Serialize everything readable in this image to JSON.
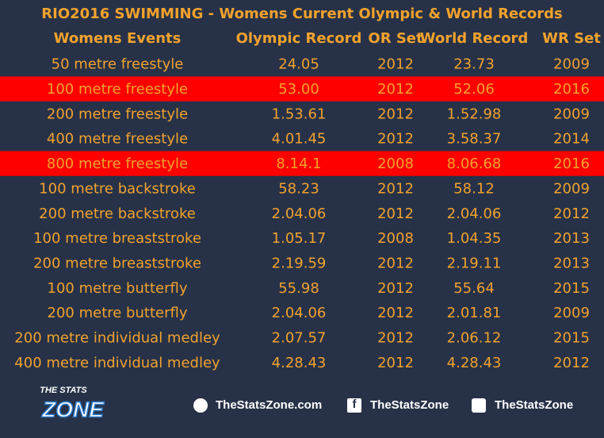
{
  "header": {
    "title": "RIO2016 SWIMMING - Womens Current  Olympic & World Records"
  },
  "table": {
    "columns": [
      "Womens Events",
      "Olympic Record",
      "OR Set",
      "World Record",
      "WR Set"
    ],
    "rows": [
      {
        "cells": [
          "50 metre freestyle",
          "24.05",
          "2012",
          "23.73",
          "2009"
        ],
        "highlighted": false
      },
      {
        "cells": [
          "100 metre freestyle",
          "53.00",
          "2012",
          "52.06",
          "2016"
        ],
        "highlighted": true
      },
      {
        "cells": [
          "200 metre freestyle",
          "1.53.61",
          "2012",
          "1.52.98",
          "2009"
        ],
        "highlighted": false
      },
      {
        "cells": [
          "400 metre freestyle",
          "4.01.45",
          "2012",
          "3.58.37",
          "2014"
        ],
        "highlighted": false
      },
      {
        "cells": [
          "800 metre freestyle",
          "8.14.1",
          "2008",
          "8.06.68",
          "2016"
        ],
        "highlighted": true
      },
      {
        "cells": [
          "100 metre backstroke",
          "58.23",
          "2012",
          "58.12",
          "2009"
        ],
        "highlighted": false
      },
      {
        "cells": [
          "200 metre backstroke",
          "2.04.06",
          "2012",
          "2.04.06",
          "2012"
        ],
        "highlighted": false
      },
      {
        "cells": [
          "100 metre breaststroke",
          "1.05.17",
          "2008",
          "1.04.35",
          "2013"
        ],
        "highlighted": false
      },
      {
        "cells": [
          "200 metre breaststroke",
          "2.19.59",
          "2012",
          "2.19.11",
          "2013"
        ],
        "highlighted": false
      },
      {
        "cells": [
          "100 metre butterfly",
          "55.98",
          "2012",
          "55.64",
          "2015"
        ],
        "highlighted": false
      },
      {
        "cells": [
          "200 metre butterfly",
          "2.04.06",
          "2012",
          "2.01.81",
          "2009"
        ],
        "highlighted": false
      },
      {
        "cells": [
          "200 metre individual medley",
          "2.07.57",
          "2012",
          "2.06.12",
          "2015"
        ],
        "highlighted": false
      },
      {
        "cells": [
          "400 metre individual medley",
          "4.28.43",
          "2012",
          "4.28.43",
          "2012"
        ],
        "highlighted": false
      }
    ]
  },
  "footer": {
    "logo": {
      "line1": "THE STATS",
      "line2": "ZONE"
    },
    "website": "TheStatsZone.com",
    "facebook": "TheStatsZone",
    "twitter": "TheStatsZone"
  }
}
